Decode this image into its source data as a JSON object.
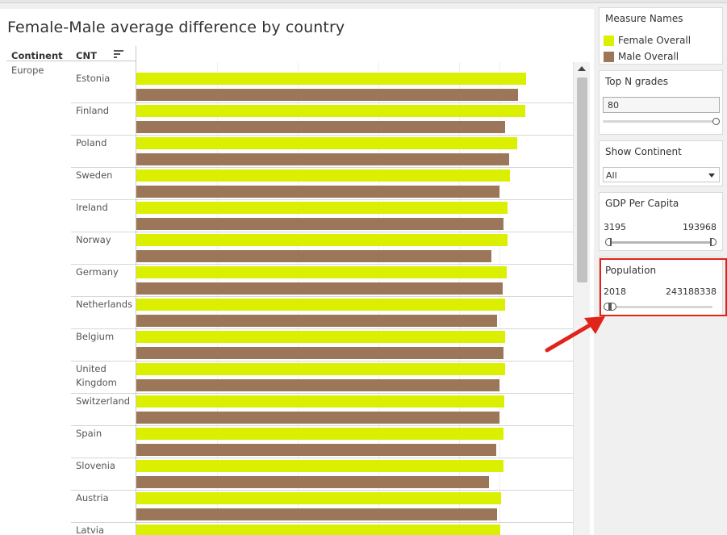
{
  "viz": {
    "title": "Female-Male average difference by country",
    "col_continent": "Continent",
    "col_cnt": "CNT",
    "continent": "Europe",
    "countries": [
      {
        "name": "Estonia",
        "female": 0.965,
        "male": 0.945
      },
      {
        "name": "Finland",
        "female": 0.963,
        "male": 0.913
      },
      {
        "name": "Poland",
        "female": 0.943,
        "male": 0.923
      },
      {
        "name": "Sweden",
        "female": 0.925,
        "male": 0.9
      },
      {
        "name": "Ireland",
        "female": 0.92,
        "male": 0.91
      },
      {
        "name": "Norway",
        "female": 0.92,
        "male": 0.88
      },
      {
        "name": "Germany",
        "female": 0.918,
        "male": 0.908
      },
      {
        "name": "Netherlands",
        "female": 0.913,
        "male": 0.893
      },
      {
        "name": "Belgium",
        "female": 0.913,
        "male": 0.91
      },
      {
        "name": "United Kingdom",
        "female": 0.913,
        "male": 0.9
      },
      {
        "name": "Switzerland",
        "female": 0.911,
        "male": 0.9
      },
      {
        "name": "Spain",
        "female": 0.909,
        "male": 0.892
      },
      {
        "name": "Slovenia",
        "female": 0.909,
        "male": 0.873
      },
      {
        "name": "Austria",
        "female": 0.903,
        "male": 0.893
      },
      {
        "name": "Latvia",
        "female": 0.901,
        "male": 0.87
      }
    ]
  },
  "legend": {
    "title": "Measure Names",
    "items": [
      {
        "label": "Female Overall",
        "color": "#dbf000"
      },
      {
        "label": "Male Overall",
        "color": "#9c7659"
      }
    ]
  },
  "top_n": {
    "title": "Top N grades",
    "value": "80",
    "slider_level": 1.0
  },
  "show_continent": {
    "title": "Show Continent",
    "selected": "All"
  },
  "gdp": {
    "title": "GDP Per Capita",
    "min": "3195",
    "max": "193968"
  },
  "population": {
    "title": "Population",
    "min": "2018",
    "max": "243188338"
  },
  "colors": {
    "female": "#dbf000",
    "male": "#9c7659",
    "highlight": "#e2231a"
  }
}
